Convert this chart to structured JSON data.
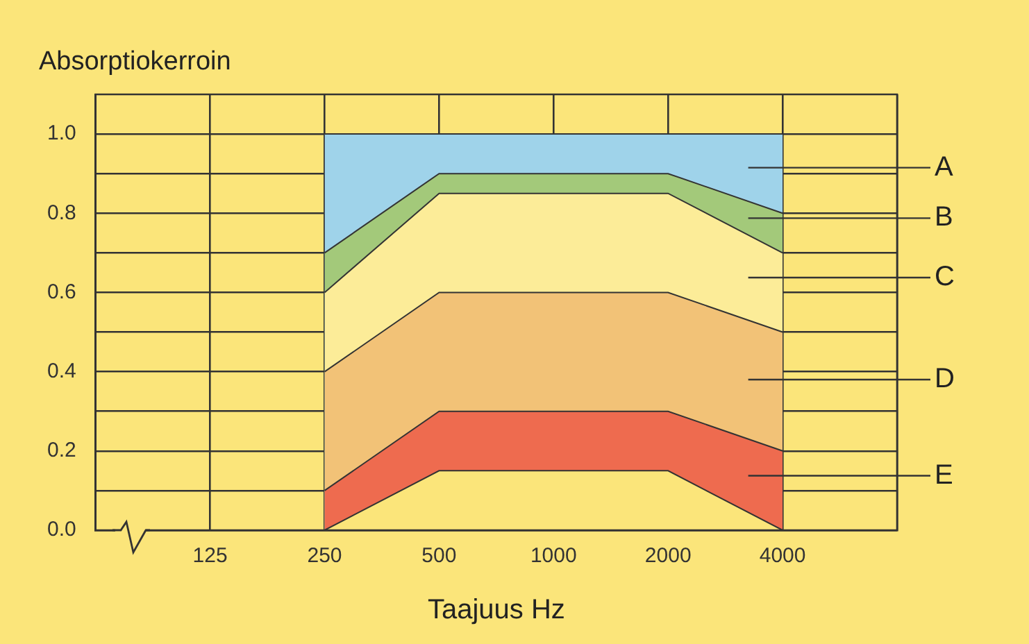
{
  "chart_data": {
    "type": "area",
    "ylabel": "Absorptiokerroin",
    "xlabel": "Taajuus Hz",
    "categories": [
      null,
      "125",
      "250",
      "500",
      "1000",
      "2000",
      "4000",
      null
    ],
    "ylim": [
      0,
      1.1
    ],
    "yticks": [
      {
        "value": 0,
        "label": "0.0"
      },
      {
        "value": 0.1,
        "label": null
      },
      0.2,
      {
        "value": 0.3,
        "label": null
      },
      0.4,
      {
        "value": 0.5,
        "label": null
      },
      0.6,
      {
        "value": 0.7,
        "label": null
      },
      0.8,
      {
        "value": 0.9,
        "label": null
      },
      {
        "value": 1,
        "label": "1.0"
      }
    ],
    "grid": true,
    "series": [
      {
        "name": "A",
        "color": "#9fd3ea",
        "values": [
          null,
          null,
          1.0,
          1.0,
          1.0,
          1.0,
          1.0,
          null
        ]
      },
      {
        "name": "B",
        "color": "#a3c97a",
        "values": [
          null,
          null,
          0.7,
          0.9,
          0.9,
          0.9,
          0.8,
          null
        ]
      },
      {
        "name": "C",
        "color": "#fcec98",
        "values": [
          null,
          null,
          0.6,
          0.85,
          0.85,
          0.85,
          0.7,
          null
        ]
      },
      {
        "name": "D",
        "color": "#f2c277",
        "values": [
          null,
          null,
          0.4,
          0.6,
          0.6,
          0.6,
          0.5,
          null
        ]
      },
      {
        "name": "E",
        "color": "#ee6b4f",
        "values": [
          null,
          null,
          0.1,
          0.3,
          0.3,
          0.3,
          0.2,
          null
        ]
      },
      {
        "color": "#fbe57a",
        "values": [
          null,
          null,
          0,
          0.15,
          0.15,
          0.15,
          0,
          null
        ]
      }
    ]
  }
}
